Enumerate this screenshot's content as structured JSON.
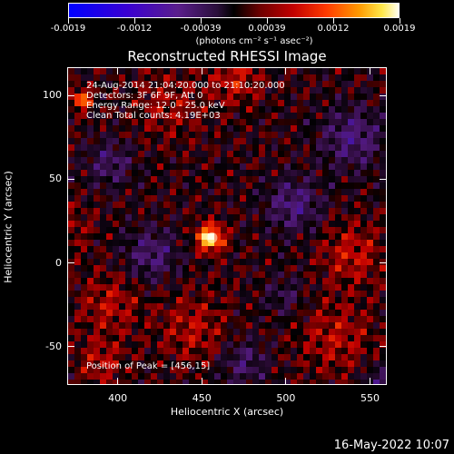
{
  "colorbar": {
    "labels": [
      "-0.0019",
      "-0.0012",
      "-0.00039",
      "0.00039",
      "0.0012",
      "0.0019"
    ],
    "unit": "(photons cm⁻² s⁻¹ asec⁻²)",
    "colors": [
      "#0000ff",
      "#5a1e8c",
      "#000000",
      "#c20000",
      "#ff9a00",
      "#ffffff"
    ]
  },
  "chart_data": {
    "type": "heatmap",
    "title": "Reconstructed RHESSI Image",
    "xlabel": "Heliocentric X (arcsec)",
    "ylabel": "Heliocentric Y (arcsec)",
    "xlim": [
      370,
      560
    ],
    "ylim": [
      -73,
      117
    ],
    "xticks": [
      400,
      450,
      500,
      550
    ],
    "yticks": [
      -50,
      0,
      50,
      100
    ],
    "peak": {
      "x": 456,
      "y": 15
    },
    "annotations": [
      "24-Aug-2014 21:04:20.000 to 21:10:20.000",
      "Detectors: 3F 6F 9F, Att 0",
      "Energy Range: 12.0 - 25.0 keV",
      "Clean     Total counts: 4.19E+03"
    ],
    "peak_label": "Position of Peak = [456,15]"
  },
  "footer": {
    "date": "16-May-2022 10:07"
  }
}
